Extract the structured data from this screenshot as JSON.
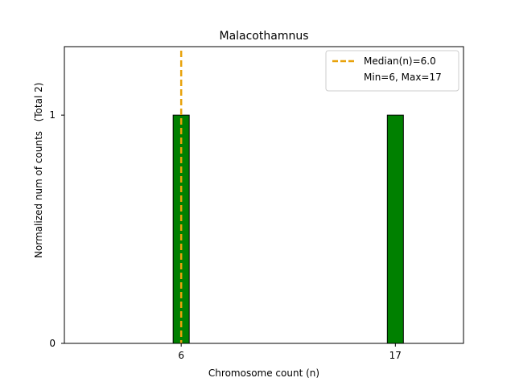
{
  "chart_data": {
    "type": "bar",
    "title": "Malacothamnus",
    "xlabel": "Chromosome count (n)",
    "ylabel": "Normalized num of counts",
    "ylabel_total": "(Total 2)",
    "categories": [
      "6",
      "17"
    ],
    "x": [
      6,
      17
    ],
    "values": [
      1,
      1
    ],
    "xlim": [
      0.0,
      20.5
    ],
    "ylim": [
      0,
      1.3
    ],
    "yticks": [
      "0",
      "1"
    ],
    "ytick_values": [
      0,
      1
    ],
    "bar_color": "#008000",
    "bar_edge_color": "#000000",
    "median": 6.0,
    "median_color": "#e8a20c",
    "legend": {
      "location": "top-right",
      "entries": [
        "Median(n)=6.0",
        "Min=6, Max=17"
      ]
    }
  }
}
